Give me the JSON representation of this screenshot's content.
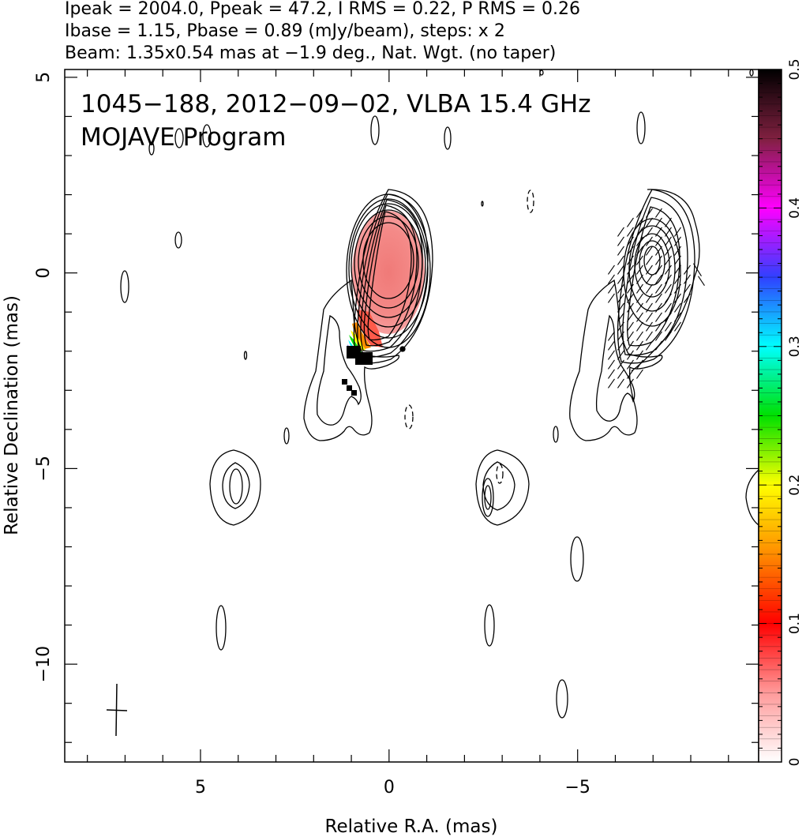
{
  "header": {
    "line1": "Ipeak = 2004.0, Ppeak = 47.2, I RMS = 0.22, P RMS = 0.26",
    "line2": "Ibase = 1.15, Pbase = 0.89 (mJy/beam), steps: x 2",
    "line3": "Beam: 1.35x0.54 mas at −1.9 deg., Nat. Wgt. (no taper)"
  },
  "plot": {
    "title_line1": "1045−188, 2012−09−02, VLBA 15.4 GHz",
    "title_line2": "MOJAVE Program"
  },
  "chart_data": {
    "type": "contour",
    "xlabel": "Relative R.A. (mas)",
    "ylabel": "Relative Declination (mas)",
    "xlim": [
      8.6,
      -9.8
    ],
    "ylim": [
      -12.5,
      5.2
    ],
    "x_ticks": [
      5,
      0,
      -5
    ],
    "x_tick_labels": [
      "5",
      "0",
      "−5"
    ],
    "y_ticks": [
      5,
      0,
      -5,
      -10
    ],
    "y_tick_labels": [
      "5",
      "0",
      "−5",
      "−10"
    ],
    "colorbar": {
      "min": 0,
      "max": 0.5,
      "ticks": [
        0,
        0.1,
        0.2,
        0.3,
        0.4,
        0.5
      ],
      "tick_labels": [
        "0",
        "0.1",
        "0.2",
        "0.3",
        "0.4",
        "0.5"
      ]
    },
    "core": {
      "x": 0.0,
      "y": 0.0
    },
    "right_panel_offset_x": -6.9,
    "contour_levels_mJy": [
      1.15,
      2.3,
      4.6,
      9.2,
      18.4,
      36.8,
      73.6,
      147.2,
      294.4,
      588.8,
      1177.6
    ],
    "beam": {
      "major_mas": 1.35,
      "minor_mas": 0.54,
      "pa_deg": -1.9
    }
  }
}
